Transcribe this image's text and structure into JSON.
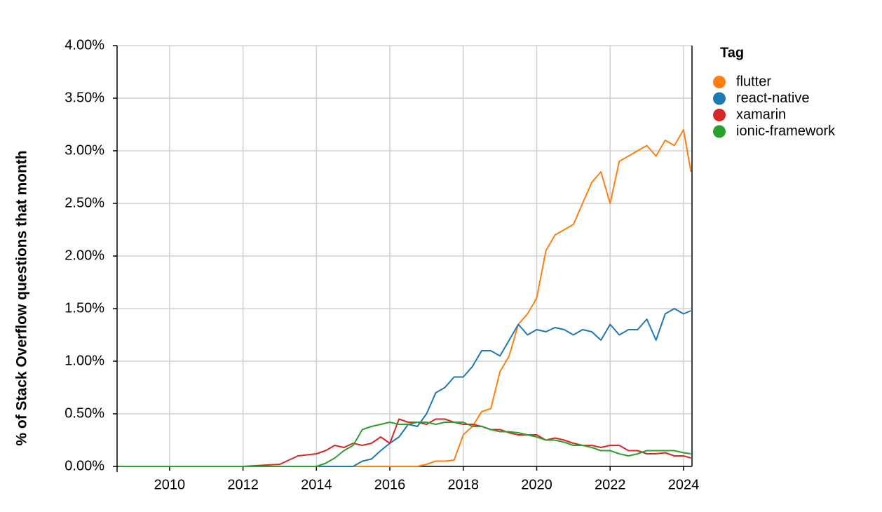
{
  "chart_data": {
    "type": "line",
    "y_label": "% of Stack Overflow questions that month",
    "legend_title": "Tag",
    "legend_position": "right",
    "grid": true,
    "x": [
      2008.6,
      2010,
      2012,
      2012.5,
      2013,
      2013.5,
      2014,
      2014.25,
      2014.5,
      2014.75,
      2015,
      2015.25,
      2015.5,
      2015.75,
      2016,
      2016.25,
      2016.5,
      2016.75,
      2017,
      2017.25,
      2017.5,
      2017.75,
      2018,
      2018.25,
      2018.5,
      2018.75,
      2019,
      2019.25,
      2019.5,
      2019.75,
      2020,
      2020.25,
      2020.5,
      2020.75,
      2021,
      2021.25,
      2021.5,
      2021.75,
      2022,
      2022.25,
      2022.5,
      2022.75,
      2023,
      2023.25,
      2023.5,
      2023.75,
      2024,
      2024.2
    ],
    "xlim": [
      2008.57,
      2024.23
    ],
    "xticks": [
      2010,
      2012,
      2014,
      2016,
      2018,
      2020,
      2022,
      2024
    ],
    "ylim": [
      0,
      4
    ],
    "yticks": [
      {
        "value": 0,
        "label": "0.00%"
      },
      {
        "value": 0.5,
        "label": "0.50%"
      },
      {
        "value": 1,
        "label": "1.00%"
      },
      {
        "value": 1.5,
        "label": "1.50%"
      },
      {
        "value": 2,
        "label": "2.00%"
      },
      {
        "value": 2.5,
        "label": "2.50%"
      },
      {
        "value": 3,
        "label": "3.00%"
      },
      {
        "value": 3.5,
        "label": "3.50%"
      },
      {
        "value": 4,
        "label": "4.00%"
      }
    ],
    "series": [
      {
        "name": "flutter",
        "color": "#ff7f0e",
        "values": [
          0,
          0,
          0,
          0,
          0,
          0,
          0,
          0,
          0,
          0,
          0,
          0,
          0,
          0,
          0,
          0,
          0,
          0,
          0.02,
          0.05,
          0.05,
          0.06,
          0.3,
          0.38,
          0.52,
          0.55,
          0.9,
          1.05,
          1.35,
          1.45,
          1.6,
          2.05,
          2.2,
          2.25,
          2.3,
          2.5,
          2.7,
          2.8,
          2.5,
          2.9,
          2.95,
          3.0,
          3.05,
          2.95,
          3.1,
          3.05,
          3.2,
          2.8
        ]
      },
      {
        "name": "react-native",
        "color": "#1f77b4",
        "values": [
          0,
          0,
          0,
          0,
          0,
          0,
          0,
          0,
          0,
          0,
          0,
          0.05,
          0.07,
          0.15,
          0.22,
          0.28,
          0.4,
          0.38,
          0.5,
          0.7,
          0.75,
          0.85,
          0.85,
          0.95,
          1.1,
          1.1,
          1.05,
          1.2,
          1.35,
          1.25,
          1.3,
          1.28,
          1.32,
          1.3,
          1.25,
          1.3,
          1.28,
          1.2,
          1.35,
          1.25,
          1.3,
          1.3,
          1.4,
          1.2,
          1.45,
          1.5,
          1.45,
          1.48
        ]
      },
      {
        "name": "xamarin",
        "color": "#d62728",
        "values": [
          0,
          0,
          0,
          0.01,
          0.02,
          0.1,
          0.12,
          0.15,
          0.2,
          0.18,
          0.22,
          0.2,
          0.22,
          0.28,
          0.22,
          0.45,
          0.42,
          0.42,
          0.4,
          0.45,
          0.45,
          0.42,
          0.4,
          0.4,
          0.38,
          0.35,
          0.35,
          0.32,
          0.3,
          0.3,
          0.3,
          0.25,
          0.27,
          0.25,
          0.22,
          0.2,
          0.2,
          0.18,
          0.2,
          0.2,
          0.15,
          0.15,
          0.12,
          0.12,
          0.13,
          0.1,
          0.1,
          0.08
        ]
      },
      {
        "name": "ionic-framework",
        "color": "#2ca02c",
        "values": [
          0,
          0,
          0,
          0,
          0,
          0,
          0,
          0.03,
          0.08,
          0.15,
          0.2,
          0.35,
          0.38,
          0.4,
          0.42,
          0.4,
          0.4,
          0.42,
          0.42,
          0.4,
          0.42,
          0.42,
          0.42,
          0.38,
          0.38,
          0.35,
          0.33,
          0.33,
          0.32,
          0.3,
          0.28,
          0.25,
          0.25,
          0.23,
          0.2,
          0.2,
          0.18,
          0.15,
          0.15,
          0.12,
          0.1,
          0.12,
          0.15,
          0.15,
          0.15,
          0.15,
          0.13,
          0.12
        ]
      }
    ]
  }
}
